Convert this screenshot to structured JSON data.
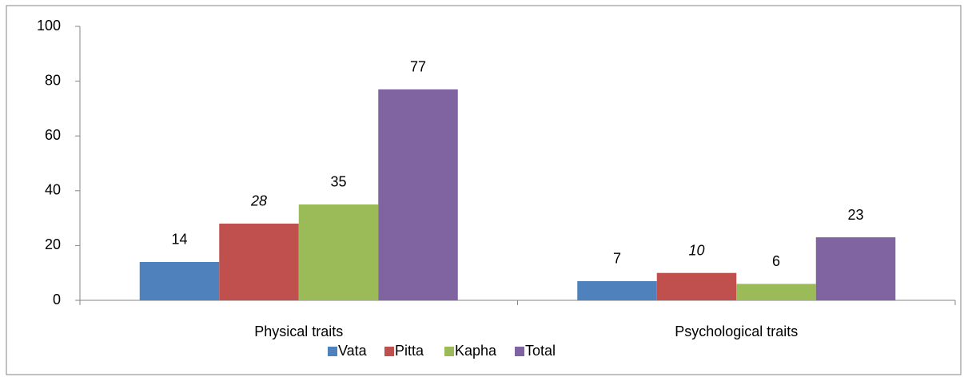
{
  "chart_data": {
    "type": "bar",
    "categories": [
      "Physical traits",
      "Psychological traits"
    ],
    "series": [
      {
        "name": "Vata",
        "color": "#4f81bd",
        "values": [
          14,
          7
        ]
      },
      {
        "name": "Pitta",
        "color": "#c0504d",
        "values": [
          28,
          10
        ],
        "label_style": "italic"
      },
      {
        "name": "Kapha",
        "color": "#9bbb59",
        "values": [
          35,
          6
        ]
      },
      {
        "name": "Total",
        "color": "#8064a2",
        "values": [
          77,
          23
        ]
      }
    ],
    "ylim": [
      0,
      100
    ],
    "yticks": [
      0,
      20,
      40,
      60,
      80,
      100
    ],
    "grid": false,
    "legend": "bottom"
  }
}
